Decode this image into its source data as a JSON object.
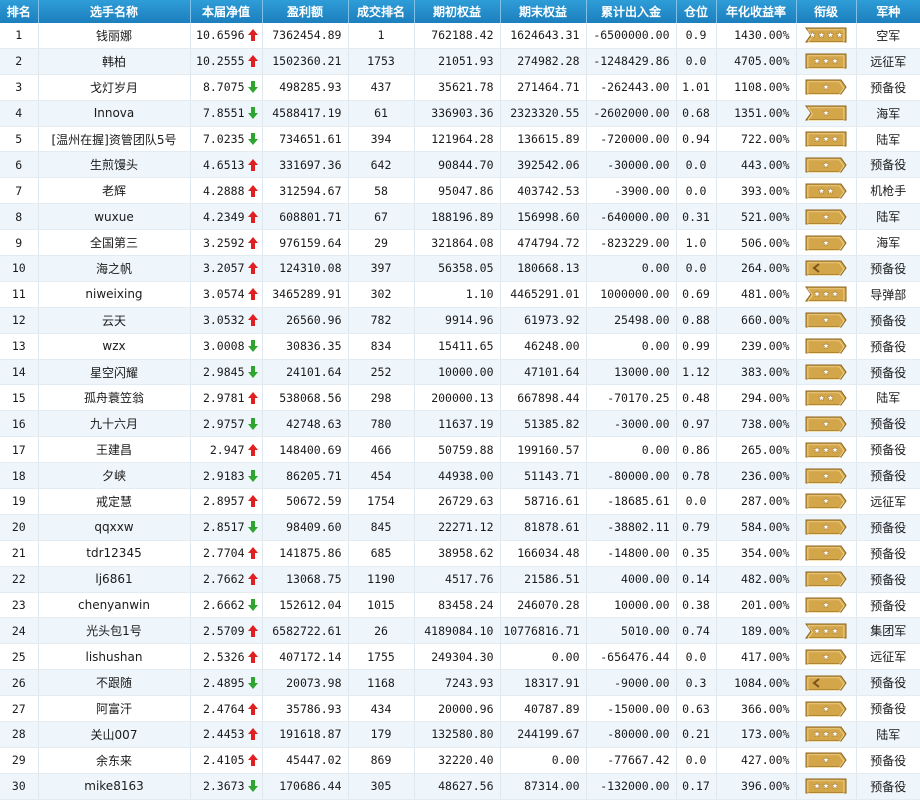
{
  "colors": {
    "header_bg": "#1c7fbd",
    "up_arrow": "#e02020",
    "down_arrow": "#2ea52e",
    "badge_fill": "#d4a64a",
    "row_alt": "#eef5fb"
  },
  "headers": [
    "排名",
    "选手名称",
    "本届净值",
    "盈利额",
    "成交排名",
    "期初权益",
    "期末权益",
    "累计出入金",
    "仓位",
    "年化收益率",
    "衔级",
    "军种"
  ],
  "rows": [
    {
      "rank": "1",
      "name": "钱丽娜",
      "nav": "10.6596",
      "trend": "up",
      "profit": "7362454.89",
      "trade_rank": "1",
      "start": "762188.42",
      "end": "1624643.31",
      "flow": "-6500000.00",
      "pos": "0.9",
      "annual": "1430.00%",
      "badge": {
        "shape": "flag",
        "stars": 4
      },
      "army": "空军"
    },
    {
      "rank": "2",
      "name": "韩柏",
      "nav": "10.2555",
      "trend": "up",
      "profit": "1502360.21",
      "trade_rank": "1753",
      "start": "21051.93",
      "end": "274982.28",
      "flow": "-1248429.86",
      "pos": "0.0",
      "annual": "4705.00%",
      "badge": {
        "shape": "plate",
        "stars": 3
      },
      "army": "远征军"
    },
    {
      "rank": "3",
      "name": "戈灯岁月",
      "nav": "8.7075",
      "trend": "down",
      "profit": "498285.93",
      "trade_rank": "437",
      "start": "35621.78",
      "end": "271464.71",
      "flow": "-262443.00",
      "pos": "1.01",
      "annual": "1108.00%",
      "badge": {
        "shape": "arrow",
        "stars": 1
      },
      "army": "预备役"
    },
    {
      "rank": "4",
      "name": "Innova",
      "nav": "7.8551",
      "trend": "down",
      "profit": "4588417.19",
      "trade_rank": "61",
      "start": "336903.36",
      "end": "2323320.55",
      "flow": "-2602000.00",
      "pos": "0.68",
      "annual": "1351.00%",
      "badge": {
        "shape": "flag",
        "stars": 1
      },
      "army": "海军"
    },
    {
      "rank": "5",
      "name": "[温州在握]资管团队5号",
      "nav": "7.0235",
      "trend": "down",
      "profit": "734651.61",
      "trade_rank": "394",
      "start": "121964.28",
      "end": "136615.89",
      "flow": "-720000.00",
      "pos": "0.94",
      "annual": "722.00%",
      "badge": {
        "shape": "plate",
        "stars": 3
      },
      "army": "陆军"
    },
    {
      "rank": "6",
      "name": "生煎馒头",
      "nav": "4.6513",
      "trend": "up",
      "profit": "331697.36",
      "trade_rank": "642",
      "start": "90844.70",
      "end": "392542.06",
      "flow": "-30000.00",
      "pos": "0.0",
      "annual": "443.00%",
      "badge": {
        "shape": "arrow",
        "stars": 1
      },
      "army": "预备役"
    },
    {
      "rank": "7",
      "name": "老辉",
      "nav": "4.2888",
      "trend": "up",
      "profit": "312594.67",
      "trade_rank": "58",
      "start": "95047.86",
      "end": "403742.53",
      "flow": "-3900.00",
      "pos": "0.0",
      "annual": "393.00%",
      "badge": {
        "shape": "arrow",
        "stars": 2
      },
      "army": "机枪手"
    },
    {
      "rank": "8",
      "name": "wuxue",
      "nav": "4.2349",
      "trend": "up",
      "profit": "608801.71",
      "trade_rank": "67",
      "start": "188196.89",
      "end": "156998.60",
      "flow": "-640000.00",
      "pos": "0.31",
      "annual": "521.00%",
      "badge": {
        "shape": "arrow",
        "stars": 1
      },
      "army": "陆军"
    },
    {
      "rank": "9",
      "name": "全国第三",
      "nav": "3.2592",
      "trend": "up",
      "profit": "976159.64",
      "trade_rank": "29",
      "start": "321864.08",
      "end": "474794.72",
      "flow": "-823229.00",
      "pos": "1.0",
      "annual": "506.00%",
      "badge": {
        "shape": "arrow",
        "stars": 1
      },
      "army": "海军"
    },
    {
      "rank": "10",
      "name": "海之帆",
      "nav": "3.2057",
      "trend": "up",
      "profit": "124310.08",
      "trade_rank": "397",
      "start": "56358.05",
      "end": "180668.13",
      "flow": "0.00",
      "pos": "0.0",
      "annual": "264.00%",
      "badge": {
        "shape": "arrow",
        "stars": 0
      },
      "army": "预备役"
    },
    {
      "rank": "11",
      "name": "niweixing",
      "nav": "3.0574",
      "trend": "up",
      "profit": "3465289.91",
      "trade_rank": "302",
      "start": "1.10",
      "end": "4465291.01",
      "flow": "1000000.00",
      "pos": "0.69",
      "annual": "481.00%",
      "badge": {
        "shape": "flag",
        "stars": 3
      },
      "army": "导弹部"
    },
    {
      "rank": "12",
      "name": "云天",
      "nav": "3.0532",
      "trend": "up",
      "profit": "26560.96",
      "trade_rank": "782",
      "start": "9914.96",
      "end": "61973.92",
      "flow": "25498.00",
      "pos": "0.88",
      "annual": "660.00%",
      "badge": {
        "shape": "arrow",
        "stars": 1
      },
      "army": "预备役"
    },
    {
      "rank": "13",
      "name": "wzx",
      "nav": "3.0008",
      "trend": "down",
      "profit": "30836.35",
      "trade_rank": "834",
      "start": "15411.65",
      "end": "46248.00",
      "flow": "0.00",
      "pos": "0.99",
      "annual": "239.00%",
      "badge": {
        "shape": "arrow",
        "stars": 1
      },
      "army": "预备役"
    },
    {
      "rank": "14",
      "name": "星空闪耀",
      "nav": "2.9845",
      "trend": "down",
      "profit": "24101.64",
      "trade_rank": "252",
      "start": "10000.00",
      "end": "47101.64",
      "flow": "13000.00",
      "pos": "1.12",
      "annual": "383.00%",
      "badge": {
        "shape": "arrow",
        "stars": 1
      },
      "army": "预备役"
    },
    {
      "rank": "15",
      "name": "孤舟蓑笠翁",
      "nav": "2.9781",
      "trend": "up",
      "profit": "538068.56",
      "trade_rank": "298",
      "start": "200000.13",
      "end": "667898.44",
      "flow": "-70170.25",
      "pos": "0.48",
      "annual": "294.00%",
      "badge": {
        "shape": "arrow",
        "stars": 2
      },
      "army": "陆军"
    },
    {
      "rank": "16",
      "name": "九十六月",
      "nav": "2.9757",
      "trend": "down",
      "profit": "42748.63",
      "trade_rank": "780",
      "start": "11637.19",
      "end": "51385.82",
      "flow": "-3000.00",
      "pos": "0.97",
      "annual": "738.00%",
      "badge": {
        "shape": "arrow",
        "stars": 1
      },
      "army": "预备役"
    },
    {
      "rank": "17",
      "name": "王建昌",
      "nav": "2.947",
      "trend": "up",
      "profit": "148400.69",
      "trade_rank": "466",
      "start": "50759.88",
      "end": "199160.57",
      "flow": "0.00",
      "pos": "0.86",
      "annual": "265.00%",
      "badge": {
        "shape": "arrow",
        "stars": 3
      },
      "army": "预备役"
    },
    {
      "rank": "18",
      "name": "夕峡",
      "nav": "2.9183",
      "trend": "down",
      "profit": "86205.71",
      "trade_rank": "454",
      "start": "44938.00",
      "end": "51143.71",
      "flow": "-80000.00",
      "pos": "0.78",
      "annual": "236.00%",
      "badge": {
        "shape": "arrow",
        "stars": 1
      },
      "army": "预备役"
    },
    {
      "rank": "19",
      "name": "戒定慧",
      "nav": "2.8957",
      "trend": "up",
      "profit": "50672.59",
      "trade_rank": "1754",
      "start": "26729.63",
      "end": "58716.61",
      "flow": "-18685.61",
      "pos": "0.0",
      "annual": "287.00%",
      "badge": {
        "shape": "arrow",
        "stars": 1
      },
      "army": "远征军"
    },
    {
      "rank": "20",
      "name": "qqxxw",
      "nav": "2.8517",
      "trend": "down",
      "profit": "98409.60",
      "trade_rank": "845",
      "start": "22271.12",
      "end": "81878.61",
      "flow": "-38802.11",
      "pos": "0.79",
      "annual": "584.00%",
      "badge": {
        "shape": "arrow",
        "stars": 1
      },
      "army": "预备役"
    },
    {
      "rank": "21",
      "name": "tdr12345",
      "nav": "2.7704",
      "trend": "up",
      "profit": "141875.86",
      "trade_rank": "685",
      "start": "38958.62",
      "end": "166034.48",
      "flow": "-14800.00",
      "pos": "0.35",
      "annual": "354.00%",
      "badge": {
        "shape": "arrow",
        "stars": 1
      },
      "army": "预备役"
    },
    {
      "rank": "22",
      "name": "lj6861",
      "nav": "2.7662",
      "trend": "up",
      "profit": "13068.75",
      "trade_rank": "1190",
      "start": "4517.76",
      "end": "21586.51",
      "flow": "4000.00",
      "pos": "0.14",
      "annual": "482.00%",
      "badge": {
        "shape": "arrow",
        "stars": 1
      },
      "army": "预备役"
    },
    {
      "rank": "23",
      "name": "chenyanwin",
      "nav": "2.6662",
      "trend": "down",
      "profit": "152612.04",
      "trade_rank": "1015",
      "start": "83458.24",
      "end": "246070.28",
      "flow": "10000.00",
      "pos": "0.38",
      "annual": "201.00%",
      "badge": {
        "shape": "arrow",
        "stars": 1
      },
      "army": "预备役"
    },
    {
      "rank": "24",
      "name": "光头包1号",
      "nav": "2.5709",
      "trend": "up",
      "profit": "6582722.61",
      "trade_rank": "26",
      "start": "4189084.10",
      "end": "10776816.71",
      "flow": "5010.00",
      "pos": "0.74",
      "annual": "189.00%",
      "badge": {
        "shape": "flag",
        "stars": 3
      },
      "army": "集团军"
    },
    {
      "rank": "25",
      "name": "lishushan",
      "nav": "2.5326",
      "trend": "up",
      "profit": "407172.14",
      "trade_rank": "1755",
      "start": "249304.30",
      "end": "0.00",
      "flow": "-656476.44",
      "pos": "0.0",
      "annual": "417.00%",
      "badge": {
        "shape": "arrow",
        "stars": 1
      },
      "army": "远征军"
    },
    {
      "rank": "26",
      "name": "不跟随",
      "nav": "2.4895",
      "trend": "down",
      "profit": "20073.98",
      "trade_rank": "1168",
      "start": "7243.93",
      "end": "18317.91",
      "flow": "-9000.00",
      "pos": "0.3",
      "annual": "1084.00%",
      "badge": {
        "shape": "arrow",
        "stars": 0
      },
      "army": "预备役"
    },
    {
      "rank": "27",
      "name": "阿富汗",
      "nav": "2.4764",
      "trend": "up",
      "profit": "35786.93",
      "trade_rank": "434",
      "start": "20000.96",
      "end": "40787.89",
      "flow": "-15000.00",
      "pos": "0.63",
      "annual": "366.00%",
      "badge": {
        "shape": "arrow",
        "stars": 1
      },
      "army": "预备役"
    },
    {
      "rank": "28",
      "name": "关山007",
      "nav": "2.4453",
      "trend": "up",
      "profit": "191618.87",
      "trade_rank": "179",
      "start": "132580.80",
      "end": "244199.67",
      "flow": "-80000.00",
      "pos": "0.21",
      "annual": "173.00%",
      "badge": {
        "shape": "arrow",
        "stars": 3
      },
      "army": "陆军"
    },
    {
      "rank": "29",
      "name": "余东来",
      "nav": "2.4105",
      "trend": "up",
      "profit": "45447.02",
      "trade_rank": "869",
      "start": "32220.40",
      "end": "0.00",
      "flow": "-77667.42",
      "pos": "0.0",
      "annual": "427.00%",
      "badge": {
        "shape": "arrow",
        "stars": 1
      },
      "army": "预备役"
    },
    {
      "rank": "30",
      "name": "mike8163",
      "nav": "2.3673",
      "trend": "down",
      "profit": "170686.44",
      "trade_rank": "305",
      "start": "48627.56",
      "end": "87314.00",
      "flow": "-132000.00",
      "pos": "0.17",
      "annual": "396.00%",
      "badge": {
        "shape": "plate",
        "stars": 3
      },
      "army": "预备役"
    }
  ]
}
